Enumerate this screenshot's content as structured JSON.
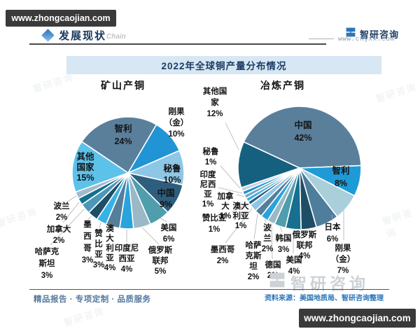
{
  "badges": {
    "top_left": "www.zhongcaojian.com",
    "bottom_right": "www.zhongcaojian.com"
  },
  "header": {
    "section_title": "发展现状",
    "watermark": "Chain",
    "brand_name": "智研咨询",
    "brand_site": "www.chyxx.com"
  },
  "report_title": "2022年全球铜产量分布情况",
  "chart_data": [
    {
      "type": "pie",
      "title": "矿山产铜",
      "unit": "%",
      "start_angle": -56,
      "legend_position": "none",
      "slices": [
        {
          "name": "智利",
          "value": 24,
          "color": "#5a7f9b",
          "label_lines": [
            "智利",
            "24%"
          ]
        },
        {
          "name": "刚果（金）",
          "value": 10,
          "color": "#2094d4",
          "label_lines": [
            "刚果",
            "（金）",
            "10%"
          ]
        },
        {
          "name": "秘鲁",
          "value": 10,
          "color": "#8ec6e6",
          "label_lines": [
            "秘鲁",
            "10%"
          ]
        },
        {
          "name": "中国",
          "value": 9,
          "color": "#2e5e7e",
          "label_lines": [
            "中国",
            "9%"
          ]
        },
        {
          "name": "美国",
          "value": 6,
          "color": "#4f9dad",
          "label_lines": [
            "美国",
            "6%"
          ]
        },
        {
          "name": "俄罗斯联邦",
          "value": 5,
          "color": "#9ab8c6",
          "label_lines": [
            "俄罗斯",
            "联邦",
            "5%"
          ]
        },
        {
          "name": "印度尼西亚",
          "value": 4,
          "color": "#28a3dc",
          "label_lines": [
            "印度尼",
            "西亚",
            "4%"
          ]
        },
        {
          "name": "澳大利亚",
          "value": 4,
          "color": "#557e9a",
          "label_lines": [
            "澳",
            "大",
            "利",
            "亚",
            "4%"
          ]
        },
        {
          "name": "赞比亚",
          "value": 3,
          "color": "#37b2e4",
          "label_lines": [
            "赞",
            "比",
            "亚",
            "3%"
          ]
        },
        {
          "name": "墨西哥",
          "value": 3,
          "color": "#1e4d66",
          "label_lines": [
            "墨",
            "西",
            "哥",
            "3%"
          ]
        },
        {
          "name": "哈萨克斯坦",
          "value": 3,
          "color": "#4b97b8",
          "label_lines": [
            "哈萨克",
            "斯坦",
            "3%"
          ]
        },
        {
          "name": "加拿大",
          "value": 2,
          "color": "#14708e",
          "label_lines": [
            "加拿大",
            "2%"
          ]
        },
        {
          "name": "波兰",
          "value": 2,
          "color": "#a3bccb",
          "label_lines": [
            "波兰",
            "2%"
          ]
        },
        {
          "name": "其他国家",
          "value": 15,
          "color": "#5cc2ea",
          "label_lines": [
            "其他",
            "国家",
            "15%"
          ]
        }
      ]
    },
    {
      "type": "pie",
      "title": "冶炼产铜",
      "unit": "%",
      "start_angle": -65,
      "legend_position": "none",
      "slices": [
        {
          "name": "中国",
          "value": 42,
          "color": "#5a7f9b",
          "label_lines": [
            "中国",
            "42%"
          ]
        },
        {
          "name": "智利",
          "value": 8,
          "color": "#1e9bd7",
          "label_lines": [
            "智利",
            "8%"
          ]
        },
        {
          "name": "刚果（金）",
          "value": 7,
          "color": "#a9cfdb",
          "label_lines": [
            "刚果",
            "（金）",
            "7%"
          ]
        },
        {
          "name": "日本",
          "value": 6,
          "color": "#4f7e9c",
          "label_lines": [
            "日本",
            "6%"
          ]
        },
        {
          "name": "俄罗斯联邦",
          "value": 4,
          "color": "#1e4d66",
          "label_lines": [
            "俄罗斯",
            "联邦",
            "4%"
          ]
        },
        {
          "name": "美国",
          "value": 4,
          "color": "#17708f",
          "label_lines": [
            "美国",
            "4%"
          ]
        },
        {
          "name": "韩国",
          "value": 3,
          "color": "#4f9dad",
          "label_lines": [
            "韩国",
            "3%"
          ]
        },
        {
          "name": "德国",
          "value": 2,
          "color": "#9ab8c6",
          "label_lines": [
            "德国",
            "2%"
          ]
        },
        {
          "name": "波兰",
          "value": 2,
          "color": "#28a3dc",
          "label_lines": [
            "波",
            "兰",
            "2%"
          ]
        },
        {
          "name": "哈萨克斯坦",
          "value": 2,
          "color": "#557e9a",
          "label_lines": [
            "哈萨",
            "克斯",
            "坦",
            "2%"
          ]
        },
        {
          "name": "墨西哥",
          "value": 2,
          "color": "#8ec6e6",
          "label_lines": [
            "墨西哥",
            "2%"
          ]
        },
        {
          "name": "赞比亚",
          "value": 1,
          "color": "#2e5e7e",
          "label_lines": [
            "赞比亚",
            "1%"
          ]
        },
        {
          "name": "澳大利亚",
          "value": 1,
          "color": "#37b2e4",
          "label_lines": [
            "澳大",
            "利亚",
            "1%"
          ]
        },
        {
          "name": "加拿大",
          "value": 1,
          "color": "#7aa6b8",
          "label_lines": [
            "加拿",
            "大",
            "1%"
          ]
        },
        {
          "name": "印度尼西亚",
          "value": 1,
          "color": "#2094d4",
          "label_lines": [
            "印度",
            "尼西",
            "亚",
            "1%"
          ]
        },
        {
          "name": "秘鲁",
          "value": 1,
          "color": "#b8d3dd",
          "label_lines": [
            "秘鲁",
            "1%"
          ]
        },
        {
          "name": "其他国家",
          "value": 12,
          "color": "#16607f",
          "label_lines": [
            "其他国",
            "家",
            "12%"
          ]
        }
      ]
    }
  ],
  "footer": {
    "tagline": "精品报告 · 专项定制 · 品质服务",
    "source": "资料来源：美国地质局、智研咨询整理",
    "watermark_brand": "智研咨询"
  }
}
